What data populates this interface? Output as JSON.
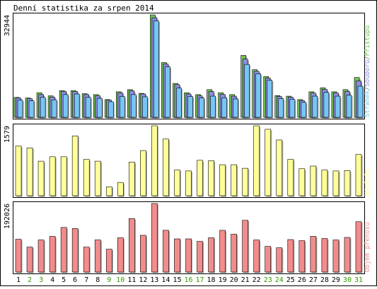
{
  "chart_data": {
    "type": "bar",
    "title": "Denní statistika za srpen 2014",
    "categories": [
      "1",
      "2",
      "3",
      "4",
      "5",
      "6",
      "7",
      "8",
      "9",
      "10",
      "11",
      "12",
      "13",
      "14",
      "15",
      "16",
      "17",
      "18",
      "19",
      "20",
      "21",
      "22",
      "23",
      "24",
      "25",
      "26",
      "27",
      "28",
      "29",
      "30",
      "31"
    ],
    "weekend_days": [
      "2",
      "3",
      "9",
      "10",
      "16",
      "17",
      "23",
      "24",
      "30",
      "31"
    ],
    "panels": [
      {
        "id": "hits",
        "ymax_label": "32944",
        "ylim": [
          0,
          32944
        ],
        "series": [
          {
            "name": "Přístupů",
            "color": "#72c155",
            "values": [
              6400,
              6200,
              7900,
              6900,
              8600,
              8600,
              7600,
              7300,
              5700,
              8200,
              8900,
              7700,
              32944,
              17600,
              10900,
              7900,
              7300,
              8900,
              7900,
              7300,
              19900,
              15300,
              13100,
              7000,
              6800,
              5700,
              8200,
              9500,
              8200,
              8900,
              12800
            ]
          },
          {
            "name": "Souborů",
            "color": "#8c8ce0",
            "values": [
              6200,
              6000,
              7300,
              6500,
              8300,
              8300,
              7300,
              6900,
              5500,
              7800,
              8500,
              7500,
              32000,
              17100,
              10500,
              7500,
              6900,
              8300,
              7400,
              6800,
              18700,
              14800,
              12600,
              6700,
              6500,
              5400,
              7800,
              9000,
              7800,
              8300,
              11700
            ]
          },
          {
            "name": "Stránek",
            "color": "#77c5f5",
            "values": [
              5500,
              5300,
              6400,
              5600,
              7300,
              7500,
              6400,
              6100,
              5000,
              6700,
              7300,
              6600,
              31000,
              16200,
              9400,
              6700,
              6200,
              6800,
              6300,
              5900,
              17000,
              14000,
              11900,
              6000,
              5800,
              4800,
              6800,
              8000,
              6800,
              7100,
              10000
            ]
          }
        ]
      },
      {
        "id": "visits",
        "ymax_label": "1579",
        "ylim": [
          0,
          1579
        ],
        "series": [
          {
            "name": "Návštěv",
            "color": "#ffff99",
            "values": [
              1120,
              1080,
              780,
              880,
              880,
              1350,
              820,
              780,
              200,
              300,
              760,
              1020,
              1579,
              1280,
              580,
              560,
              800,
              790,
              700,
              700,
              620,
              1579,
              1500,
              1260,
              820,
              610,
              670,
              580,
              560,
              570,
              930
            ]
          }
        ]
      },
      {
        "id": "traffic",
        "ymax_label": "192026",
        "ylim": [
          0,
          192026
        ],
        "series": [
          {
            "name": "Objem přenosu",
            "color": "#f28c8c",
            "values": [
              92000,
              70000,
              90000,
              100000,
              125000,
              122000,
              70000,
              90000,
              64000,
              96000,
              150000,
              103000,
              192026,
              117000,
              93000,
              93000,
              86000,
              96000,
              117000,
              106000,
              145000,
              90000,
              72000,
              68000,
              91000,
              88000,
              100000,
              94000,
              90000,
              97000,
              141000
            ]
          }
        ]
      }
    ],
    "right_labels": {
      "hits": [
        {
          "text": "Stránek",
          "color": "#77c5f5"
        },
        {
          "text": "/",
          "color": "#777777"
        },
        {
          "text": "Souborů",
          "color": "#8c8ce0"
        },
        {
          "text": "/",
          "color": "#777777"
        },
        {
          "text": "Přístupů",
          "color": "#72c155"
        }
      ],
      "visits": [
        {
          "text": "Návštěv",
          "color": "#ffff99"
        }
      ],
      "traffic": [
        {
          "text": "Objem přenosu",
          "color": "#f28c8c"
        }
      ]
    },
    "axis_colors": {
      "weekday": "#000000",
      "weekend": "#339900"
    }
  }
}
